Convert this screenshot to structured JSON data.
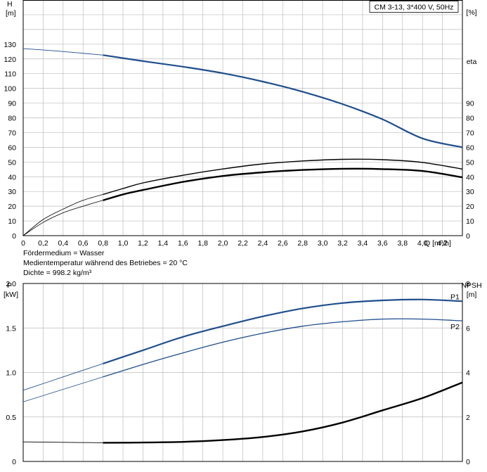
{
  "chart_data": [
    {
      "type": "line",
      "title": "CM 3-13, 3*400 V, 50Hz",
      "xlabel": "Q [m³/h]",
      "ylabel": [
        "H",
        "[m]"
      ],
      "y2label": [
        "eta",
        "[%]"
      ],
      "xlim": [
        0,
        4.4
      ],
      "ylim": [
        0,
        160
      ],
      "xticks": [
        "0",
        "0,2",
        "0,4",
        "0,6",
        "0,8",
        "1,0",
        "1,2",
        "1,4",
        "1,6",
        "1,8",
        "2,0",
        "2,2",
        "2,4",
        "2,6",
        "2,8",
        "3,0",
        "3,2",
        "3,4",
        "3,6",
        "3,8",
        "4,0",
        "4,2"
      ],
      "yticks_left": [
        "0",
        "10",
        "20",
        "30",
        "40",
        "50",
        "60",
        "70",
        "80",
        "90",
        "100",
        "110",
        "120",
        "130"
      ],
      "yticks_right": [
        "0",
        "10",
        "20",
        "30",
        "40",
        "50",
        "60",
        "70",
        "80",
        "90"
      ],
      "grid": true,
      "series": [
        {
          "color": "#1f4e8c",
          "x": [
            0,
            0.4,
            0.8,
            1.2,
            1.6,
            2.0,
            2.4,
            2.8,
            3.2,
            3.6,
            4.0,
            4.4
          ],
          "y": [
            127,
            125,
            122.6,
            118.5,
            114.7,
            110.3,
            104.6,
            97.7,
            89.3,
            79,
            66,
            60
          ]
        },
        {
          "color": "#000000",
          "x": [
            0,
            0.2,
            0.4,
            0.6,
            0.8,
            1.0,
            1.2,
            1.6,
            2.0,
            2.4,
            2.8,
            3.2,
            3.6,
            4.0,
            4.4
          ],
          "y": [
            0,
            11,
            18,
            24,
            28,
            32,
            35.8,
            41,
            45.3,
            48.7,
            50.7,
            51.8,
            51.6,
            49.7,
            45.2
          ]
        },
        {
          "color": "#000000",
          "x": [
            0,
            0.2,
            0.4,
            0.6,
            0.8,
            1.0,
            1.2,
            1.6,
            2.0,
            2.4,
            2.8,
            3.2,
            3.6,
            4.0,
            4.4
          ],
          "y": [
            0,
            9,
            15.5,
            20,
            24,
            28,
            31,
            36.5,
            40.5,
            43,
            44.6,
            45.4,
            45.2,
            43.9,
            39.6
          ]
        }
      ]
    },
    {
      "type": "line",
      "xlim": [
        0,
        4.4
      ],
      "ylabel": [
        "P",
        "[kW]"
      ],
      "y2label": [
        "NPSH",
        "[m]"
      ],
      "ylim": [
        0,
        2.0
      ],
      "y2lim": [
        0,
        8
      ],
      "yticks_left": [
        "0",
        "0.5",
        "1.0",
        "1.5",
        "2.0"
      ],
      "yticks_right": [
        "0",
        "2",
        "4",
        "6",
        "8"
      ],
      "grid": true,
      "series": [
        {
          "name": "P1",
          "color": "#1f4e8c",
          "x": [
            0,
            0.4,
            0.8,
            1.2,
            1.6,
            2.0,
            2.4,
            2.8,
            3.2,
            3.6,
            4.0,
            4.4
          ],
          "y": [
            0.8,
            0.95,
            1.1,
            1.25,
            1.4,
            1.52,
            1.63,
            1.72,
            1.78,
            1.81,
            1.82,
            1.8
          ]
        },
        {
          "name": "P2",
          "color": "#1f4e8c",
          "x": [
            0,
            0.4,
            0.8,
            1.2,
            1.6,
            2.0,
            2.4,
            2.8,
            3.2,
            3.6,
            4.0,
            4.4
          ],
          "y": [
            0.67,
            0.81,
            0.95,
            1.09,
            1.22,
            1.34,
            1.44,
            1.52,
            1.57,
            1.6,
            1.6,
            1.58
          ]
        },
        {
          "color": "#000000",
          "axis": "right",
          "x": [
            0,
            0.4,
            0.8,
            1.2,
            1.6,
            2.0,
            2.4,
            2.8,
            3.2,
            3.6,
            4.0,
            4.4
          ],
          "y": [
            0.88,
            0.86,
            0.84,
            0.85,
            0.88,
            0.96,
            1.1,
            1.35,
            1.75,
            2.3,
            2.85,
            3.55
          ]
        }
      ]
    }
  ],
  "notes": {
    "medium": "Fördermedium = Wasser",
    "temperature": "Medientemperatur während des Betriebes = 20 °C",
    "density": "Dichte = 998.2 kg/m³"
  }
}
